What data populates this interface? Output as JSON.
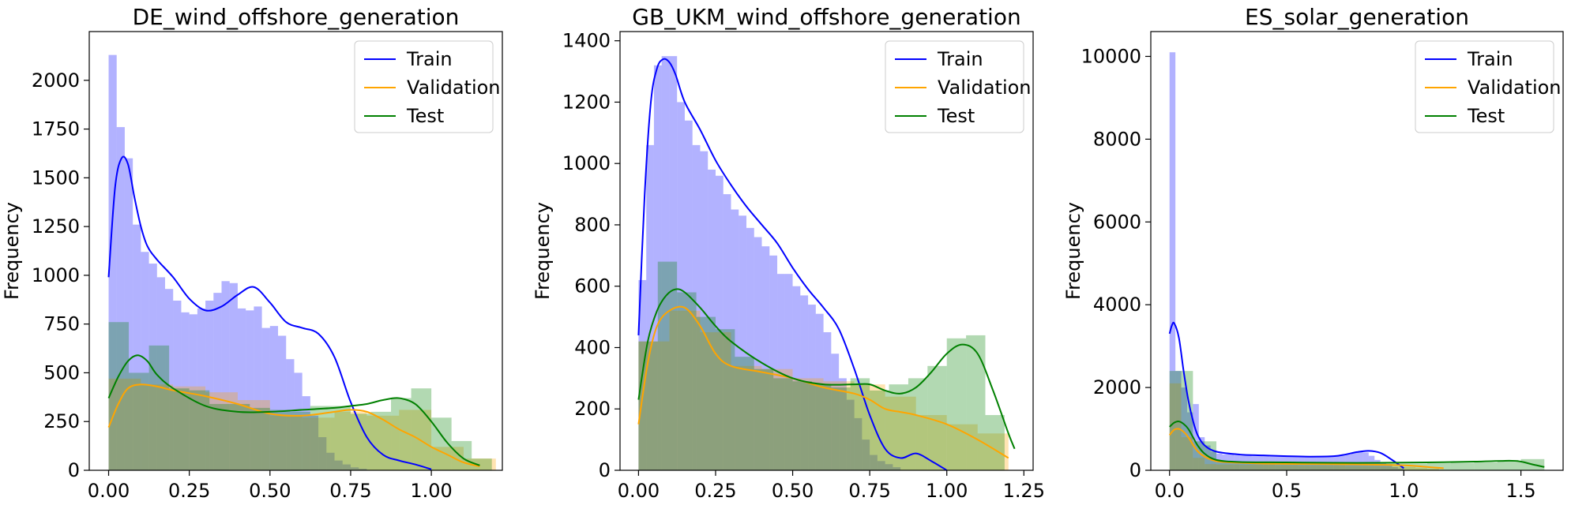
{
  "chart_data": [
    {
      "type": "histogram",
      "title": "DE_wind_offshore_generation",
      "xlabel": "",
      "ylabel": "Frequency",
      "xlim": [
        -0.06,
        1.22
      ],
      "ylim": [
        0,
        2250
      ],
      "xticks": [
        0.0,
        0.25,
        0.5,
        0.75,
        1.0
      ],
      "xtick_labels": [
        "0.00",
        "0.25",
        "0.50",
        "0.75",
        "1.00"
      ],
      "yticks": [
        0,
        250,
        500,
        750,
        1000,
        1250,
        1500,
        1750,
        2000
      ],
      "ytick_labels": [
        "0",
        "250",
        "500",
        "750",
        "1000",
        "1250",
        "1500",
        "1750",
        "2000"
      ],
      "legend": {
        "position": "top-right",
        "entries": [
          "Train",
          "Validation",
          "Test"
        ]
      },
      "series": [
        {
          "name": "Train",
          "color": "#0000ff",
          "alpha": 0.3,
          "bin_start": 0.0,
          "bin_width": 0.025,
          "counts": [
            2130,
            1760,
            1600,
            1260,
            1120,
            1060,
            990,
            930,
            870,
            810,
            800,
            830,
            870,
            910,
            970,
            960,
            830,
            820,
            840,
            730,
            740,
            690,
            570,
            500,
            380,
            280,
            170,
            90,
            50,
            30,
            15,
            8
          ],
          "kde": {
            "x": [
              0.0,
              0.02,
              0.04,
              0.06,
              0.08,
              0.1,
              0.12,
              0.15,
              0.2,
              0.25,
              0.3,
              0.35,
              0.4,
              0.45,
              0.5,
              0.55,
              0.6,
              0.65,
              0.7,
              0.75,
              0.8,
              0.85,
              0.9,
              0.95,
              1.0
            ],
            "y": [
              990,
              1450,
              1600,
              1570,
              1400,
              1250,
              1150,
              1080,
              990,
              880,
              820,
              840,
              900,
              940,
              860,
              760,
              730,
              700,
              580,
              350,
              170,
              80,
              50,
              30,
              5
            ]
          }
        },
        {
          "name": "Validation",
          "color": "#ffa500",
          "alpha": 0.3,
          "bin_start": 0.0,
          "bin_width": 0.1,
          "counts": [
            470,
            440,
            430,
            400,
            360,
            280,
            270,
            300,
            280,
            310,
            120,
            60
          ],
          "kde": {
            "x": [
              0.0,
              0.03,
              0.06,
              0.1,
              0.15,
              0.2,
              0.3,
              0.4,
              0.5,
              0.6,
              0.7,
              0.75,
              0.8,
              0.85,
              0.9,
              0.95,
              1.0,
              1.05,
              1.1,
              1.15
            ],
            "y": [
              220,
              340,
              420,
              440,
              430,
              410,
              380,
              340,
              290,
              280,
              300,
              310,
              300,
              260,
              210,
              170,
              120,
              80,
              40,
              20
            ]
          }
        },
        {
          "name": "Test",
          "color": "#008000",
          "alpha": 0.3,
          "bin_start": 0.0,
          "bin_width": 0.0625,
          "counts": [
            760,
            500,
            640,
            420,
            410,
            340,
            340,
            320,
            310,
            300,
            330,
            330,
            290,
            300,
            370,
            420,
            270,
            150,
            60
          ],
          "kde": {
            "x": [
              0.0,
              0.03,
              0.06,
              0.09,
              0.12,
              0.15,
              0.2,
              0.3,
              0.4,
              0.5,
              0.6,
              0.7,
              0.75,
              0.8,
              0.85,
              0.9,
              0.95,
              1.0,
              1.05,
              1.1,
              1.15
            ],
            "y": [
              370,
              480,
              560,
              590,
              560,
              490,
              420,
              330,
              300,
              300,
              310,
              320,
              330,
              340,
              360,
              370,
              340,
              250,
              140,
              60,
              25
            ]
          }
        }
      ]
    },
    {
      "type": "histogram",
      "title": "GB_UKM_wind_offshore_generation",
      "xlabel": "",
      "ylabel": "Frequency",
      "xlim": [
        -0.06,
        1.28
      ],
      "ylim": [
        0,
        1430
      ],
      "xticks": [
        0.0,
        0.25,
        0.5,
        0.75,
        1.0,
        1.25
      ],
      "xtick_labels": [
        "0.00",
        "0.25",
        "0.50",
        "0.75",
        "1.00",
        "1.25"
      ],
      "yticks": [
        0,
        200,
        400,
        600,
        800,
        1000,
        1200,
        1400
      ],
      "ytick_labels": [
        "0",
        "200",
        "400",
        "600",
        "800",
        "1000",
        "1200",
        "1400"
      ],
      "legend": {
        "position": "top-right",
        "entries": [
          "Train",
          "Validation",
          "Test"
        ]
      },
      "series": [
        {
          "name": "Train",
          "color": "#0000ff",
          "alpha": 0.3,
          "bin_start": 0.0,
          "bin_width": 0.025,
          "counts": [
            620,
            1060,
            1320,
            1350,
            1350,
            1200,
            1140,
            1060,
            1040,
            980,
            960,
            900,
            850,
            830,
            790,
            760,
            730,
            700,
            640,
            640,
            600,
            570,
            540,
            510,
            450,
            380,
            300,
            230,
            170,
            100,
            50,
            30,
            20,
            10
          ],
          "kde": {
            "x": [
              0.0,
              0.02,
              0.04,
              0.06,
              0.08,
              0.1,
              0.12,
              0.15,
              0.2,
              0.25,
              0.3,
              0.35,
              0.4,
              0.45,
              0.5,
              0.55,
              0.6,
              0.65,
              0.7,
              0.75,
              0.8,
              0.85,
              0.9,
              0.95,
              1.0
            ],
            "y": [
              440,
              900,
              1200,
              1310,
              1340,
              1330,
              1290,
              1200,
              1110,
              1010,
              930,
              860,
              800,
              740,
              660,
              590,
              530,
              460,
              330,
              180,
              70,
              40,
              55,
              30,
              0
            ]
          }
        },
        {
          "name": "Validation",
          "color": "#ffa500",
          "alpha": 0.3,
          "bin_start": 0.0,
          "bin_width": 0.1,
          "counts": [
            420,
            520,
            450,
            340,
            330,
            300,
            290,
            280,
            240,
            180,
            150,
            120
          ],
          "kde": {
            "x": [
              0.0,
              0.03,
              0.06,
              0.1,
              0.15,
              0.2,
              0.25,
              0.3,
              0.4,
              0.5,
              0.6,
              0.7,
              0.75,
              0.8,
              0.85,
              0.9,
              1.0,
              1.1,
              1.2
            ],
            "y": [
              150,
              350,
              470,
              520,
              530,
              470,
              380,
              340,
              320,
              300,
              270,
              250,
              230,
              200,
              190,
              180,
              150,
              100,
              40
            ]
          }
        },
        {
          "name": "Test",
          "color": "#008000",
          "alpha": 0.3,
          "bin_start": 0.0,
          "bin_width": 0.0625,
          "counts": [
            420,
            680,
            580,
            500,
            460,
            370,
            330,
            300,
            290,
            280,
            270,
            300,
            260,
            280,
            300,
            340,
            430,
            440,
            180
          ],
          "kde": {
            "x": [
              0.0,
              0.03,
              0.06,
              0.09,
              0.12,
              0.15,
              0.2,
              0.25,
              0.3,
              0.4,
              0.5,
              0.6,
              0.7,
              0.75,
              0.8,
              0.85,
              0.9,
              0.95,
              1.0,
              1.05,
              1.1,
              1.15,
              1.2,
              1.22
            ],
            "y": [
              230,
              420,
              520,
              570,
              590,
              580,
              530,
              470,
              420,
              350,
              300,
              280,
              280,
              280,
              260,
              250,
              270,
              320,
              380,
              410,
              380,
              260,
              120,
              70
            ]
          }
        }
      ]
    },
    {
      "type": "histogram",
      "title": "ES_solar_generation",
      "xlabel": "",
      "ylabel": "Frequency",
      "xlim": [
        -0.08,
        1.68
      ],
      "ylim": [
        0,
        10600
      ],
      "xticks": [
        0.0,
        0.5,
        1.0,
        1.5
      ],
      "xtick_labels": [
        "0.0",
        "0.5",
        "1.0",
        "1.5"
      ],
      "yticks": [
        0,
        2000,
        4000,
        6000,
        8000,
        10000
      ],
      "ytick_labels": [
        "0",
        "2000",
        "4000",
        "6000",
        "8000",
        "10000"
      ],
      "legend": {
        "position": "top-right",
        "entries": [
          "Train",
          "Validation",
          "Test"
        ]
      },
      "series": [
        {
          "name": "Train",
          "color": "#0000ff",
          "alpha": 0.3,
          "bin_start": 0.0,
          "bin_width": 0.025,
          "counts": [
            10100,
            2400,
            2000,
            1400,
            1600,
            800,
            600,
            450,
            400,
            380,
            380,
            360,
            350,
            350,
            340,
            340,
            340,
            330,
            330,
            330,
            330,
            340,
            340,
            340,
            330,
            330,
            330,
            340,
            350,
            360,
            380,
            420,
            450,
            430,
            350,
            250,
            200,
            150,
            80,
            40
          ],
          "kde": {
            "x": [
              0.0,
              0.01,
              0.02,
              0.04,
              0.06,
              0.08,
              0.1,
              0.12,
              0.15,
              0.2,
              0.3,
              0.4,
              0.5,
              0.6,
              0.7,
              0.75,
              0.8,
              0.85,
              0.9,
              0.95,
              1.0
            ],
            "y": [
              3300,
              3500,
              3550,
              3200,
              2400,
              1700,
              1200,
              850,
              600,
              450,
              380,
              360,
              340,
              330,
              340,
              380,
              440,
              470,
              420,
              250,
              50
            ]
          }
        },
        {
          "name": "Validation",
          "color": "#ffa500",
          "alpha": 0.3,
          "bin_start": 0.0,
          "bin_width": 0.05,
          "counts": [
            2100,
            800,
            300,
            150,
            140,
            140,
            130,
            130,
            130,
            120,
            120,
            110,
            110,
            110,
            110,
            100,
            100,
            100,
            90,
            90,
            80,
            60,
            40
          ],
          "kde": {
            "x": [
              0.0,
              0.02,
              0.04,
              0.06,
              0.08,
              0.1,
              0.12,
              0.15,
              0.2,
              0.3,
              0.4,
              0.6,
              0.8,
              1.0,
              1.1,
              1.17
            ],
            "y": [
              850,
              980,
              1000,
              930,
              800,
              620,
              460,
              330,
              220,
              180,
              160,
              150,
              140,
              120,
              80,
              50
            ]
          }
        },
        {
          "name": "Test",
          "color": "#008000",
          "alpha": 0.3,
          "bin_start": 0.0,
          "bin_width": 0.1,
          "counts": [
            2400,
            700,
            200,
            200,
            190,
            180,
            170,
            170,
            170,
            160,
            160,
            170,
            180,
            190,
            230,
            270
          ],
          "kde": {
            "x": [
              0.0,
              0.02,
              0.04,
              0.06,
              0.08,
              0.1,
              0.12,
              0.15,
              0.2,
              0.3,
              0.5,
              0.7,
              0.9,
              1.1,
              1.3,
              1.45,
              1.5,
              1.55,
              1.6
            ],
            "y": [
              1050,
              1150,
              1180,
              1120,
              1000,
              800,
              600,
              400,
              250,
              200,
              190,
              180,
              180,
              190,
              210,
              230,
              210,
              140,
              80
            ]
          }
        }
      ]
    }
  ]
}
